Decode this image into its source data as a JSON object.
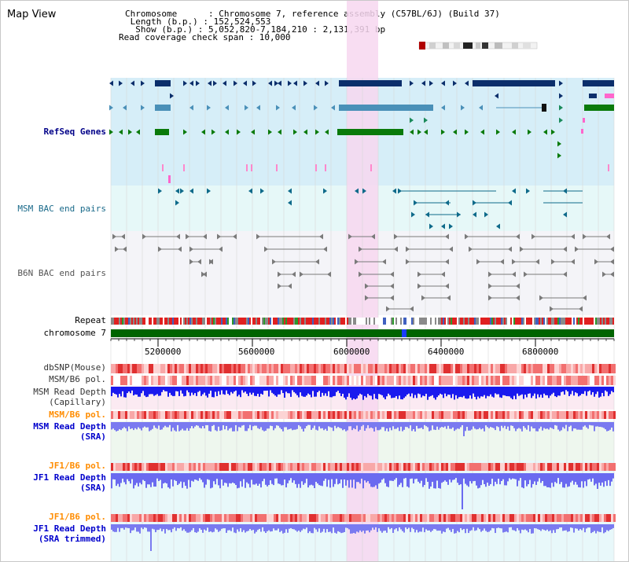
{
  "title": "Map View",
  "header": {
    "rows": [
      "Chromosome      : Chromosome 7, reference assembly (C57BL/6J) (Build 37)",
      " Length (b.p.) : 152,524,553",
      "  Show (b.p.) : 5,052,820-7,184,210 : 2,131,391 bp",
      "Read coverage check span : 10,000"
    ]
  },
  "tracks": {
    "refseq": "RefSeq Genes",
    "msm_bac": "MSM BAC end pairs",
    "b6n_bac": "B6N BAC end pairs",
    "repeat": "Repeat",
    "chromosome": "chromosome 7",
    "dbsnp": "dbSNP(Mouse)",
    "msm_pol_1": "MSM/B6 pol.",
    "msm_depth_cap_1": "MSM Read Depth",
    "msm_depth_cap_2": "(Capillary)",
    "msm_pol_2": "MSM/B6 pol.",
    "msm_depth_sra_1": "MSM Read Depth",
    "msm_depth_sra_2": "(SRA)",
    "jf1_pol_1": "JF1/B6 pol.",
    "jf1_depth_sra_1": "JF1 Read Depth",
    "jf1_depth_sra_2": "(SRA)",
    "jf1_pol_2": "JF1/B6 pol.",
    "jf1_depth_trim_1": "JF1 Read Depth",
    "jf1_depth_trim_2": "(SRA trimmed)"
  },
  "axis": {
    "ticks": [
      "5200000",
      "5600000",
      "6000000",
      "6400000",
      "6800000"
    ]
  },
  "colors": {
    "refseq_bg": "#d6eef8",
    "msm_bac_bg": "#e6f8f8",
    "b6n_bg": "#f2f2f6",
    "highlight": "#f7d7f0",
    "chrom_green": "#006400",
    "navy": "#0b2e6b",
    "steel": "#4a90b8",
    "gene_green": "#0a7a0a",
    "teal": "#0e6a8a",
    "gray_line": "#7a7a7a",
    "label_navy": "#000088",
    "label_orange": "#ff8c00",
    "label_teal": "#1a6a8a",
    "label_gray": "#444444"
  }
}
